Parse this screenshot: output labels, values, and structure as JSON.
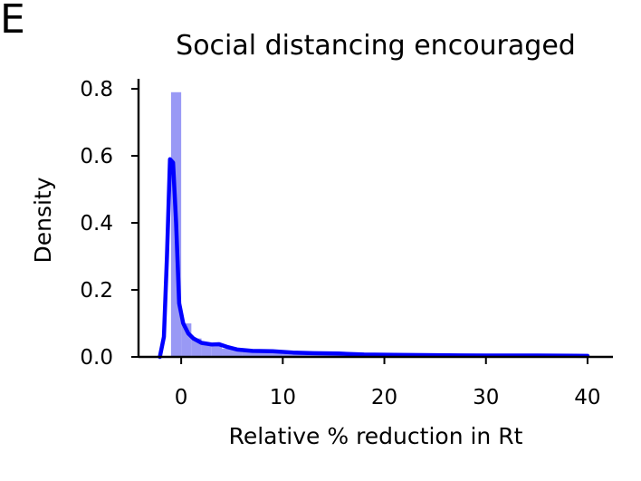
{
  "panel_label": "E",
  "chart_data": {
    "type": "area",
    "title": "Social distancing encouraged",
    "xlabel": "Relative % reduction in Rt",
    "ylabel": "Density",
    "xlim": [
      -4.2,
      42.5
    ],
    "ylim": [
      0,
      0.83
    ],
    "xticks": [
      0,
      10,
      20,
      30,
      40
    ],
    "yticks": [
      0.0,
      0.2,
      0.4,
      0.6,
      0.8
    ],
    "xtick_labels": [
      "0",
      "10",
      "20",
      "30",
      "40"
    ],
    "ytick_labels": [
      "0.0",
      "0.2",
      "0.4",
      "0.6",
      "0.8"
    ],
    "grid": false,
    "colors": {
      "line": "#0000ff",
      "histogram": "#9999f5"
    },
    "series": [
      {
        "type": "histogram",
        "bins": [
          {
            "x0": -1.0,
            "x1": 0.0,
            "density": 0.79
          },
          {
            "x0": 0.0,
            "x1": 1.0,
            "density": 0.1
          },
          {
            "x0": 1.0,
            "x1": 2.0,
            "density": 0.055
          },
          {
            "x0": 2.0,
            "x1": 3.0,
            "density": 0.04
          },
          {
            "x0": 3.0,
            "x1": 4.0,
            "density": 0.035
          },
          {
            "x0": 4.0,
            "x1": 6.0,
            "density": 0.025
          },
          {
            "x0": 6.0,
            "x1": 10.0,
            "density": 0.015
          },
          {
            "x0": 10.0,
            "x1": 16.0,
            "density": 0.01
          },
          {
            "x0": 16.0,
            "x1": 40.0,
            "density": 0.004
          }
        ]
      },
      {
        "type": "kde",
        "points": [
          [
            -2.1,
            0.0
          ],
          [
            -1.7,
            0.06
          ],
          [
            -1.4,
            0.3
          ],
          [
            -1.1,
            0.59
          ],
          [
            -0.8,
            0.58
          ],
          [
            -0.5,
            0.4
          ],
          [
            -0.2,
            0.16
          ],
          [
            0.2,
            0.1
          ],
          [
            0.7,
            0.07
          ],
          [
            1.2,
            0.055
          ],
          [
            2.0,
            0.042
          ],
          [
            3.0,
            0.037
          ],
          [
            3.7,
            0.038
          ],
          [
            4.5,
            0.03
          ],
          [
            5.5,
            0.022
          ],
          [
            7.0,
            0.018
          ],
          [
            9.0,
            0.017
          ],
          [
            11.0,
            0.013
          ],
          [
            13.0,
            0.011
          ],
          [
            15.5,
            0.01
          ],
          [
            18.0,
            0.007
          ],
          [
            21.0,
            0.006
          ],
          [
            25.0,
            0.005
          ],
          [
            30.0,
            0.004
          ],
          [
            35.0,
            0.004
          ],
          [
            40.0,
            0.003
          ]
        ]
      }
    ]
  }
}
